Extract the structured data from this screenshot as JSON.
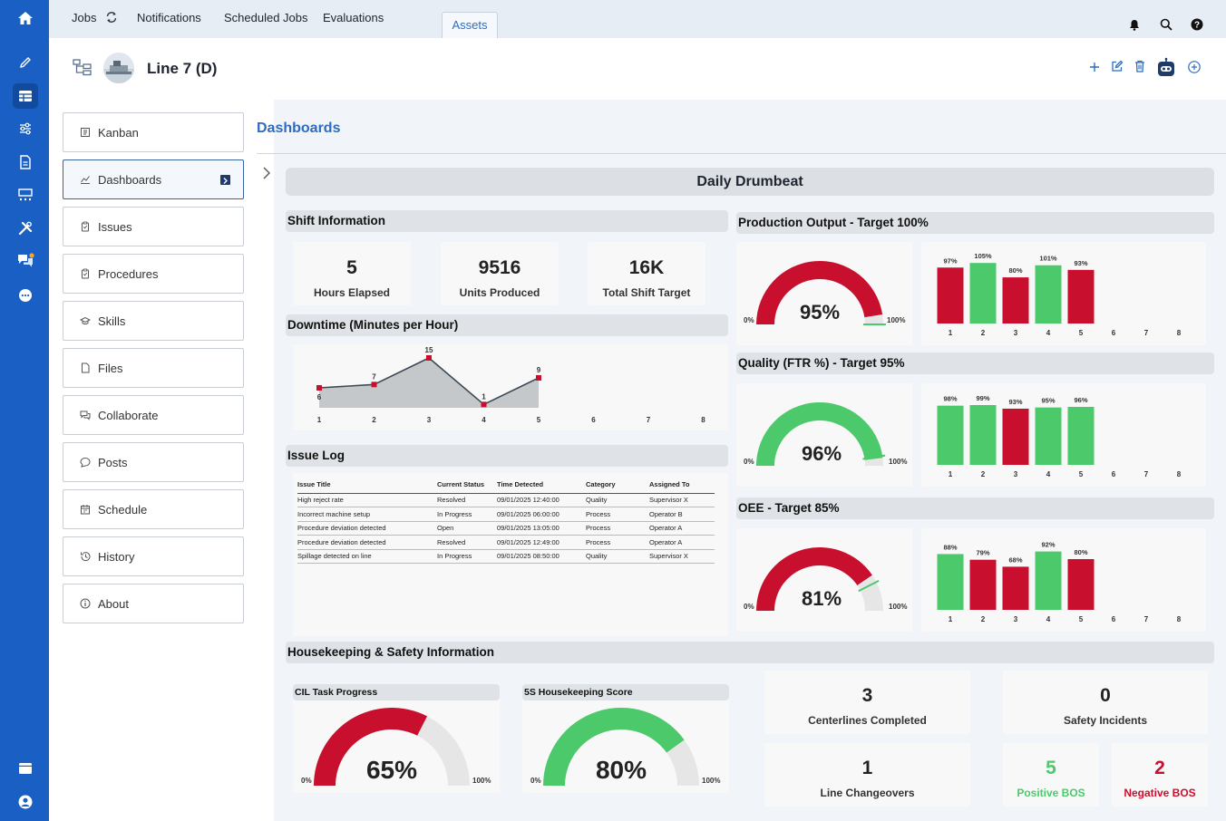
{
  "topbar": {
    "tabs": [
      {
        "label": "Jobs"
      },
      {
        "label": "Notifications"
      },
      {
        "label": "Scheduled Jobs"
      },
      {
        "label": "Evaluations"
      },
      {
        "label": "Assets"
      }
    ],
    "active_tab": "Assets"
  },
  "header": {
    "title": "Line 7 (D)"
  },
  "sidebar": {
    "items": [
      {
        "label": "Kanban",
        "icon": "kanban-icon"
      },
      {
        "label": "Dashboards",
        "icon": "chart-icon"
      },
      {
        "label": "Issues",
        "icon": "clipboard-icon"
      },
      {
        "label": "Procedures",
        "icon": "clipboard-icon"
      },
      {
        "label": "Skills",
        "icon": "graduation-icon"
      },
      {
        "label": "Files",
        "icon": "file-icon"
      },
      {
        "label": "Collaborate",
        "icon": "chat-icon"
      },
      {
        "label": "Posts",
        "icon": "speech-bubble-icon"
      },
      {
        "label": "Schedule",
        "icon": "calendar-icon"
      },
      {
        "label": "History",
        "icon": "history-icon"
      },
      {
        "label": "About",
        "icon": "info-icon"
      }
    ],
    "active": "Dashboards"
  },
  "main": {
    "section_title": "Dashboards"
  },
  "dashboard": {
    "title": "Daily Drumbeat",
    "shift": {
      "title": "Shift Information",
      "kpis": [
        {
          "value": "5",
          "label": "Hours Elapsed"
        },
        {
          "value": "9516",
          "label": "Units Produced"
        },
        {
          "value": "16K",
          "label": "Total Shift Target"
        }
      ]
    },
    "downtime": {
      "title": "Downtime (Minutes per Hour)"
    },
    "issue_log": {
      "title": "Issue Log",
      "columns": [
        "Issue Title",
        "Current Status",
        "Time Detected",
        "Category",
        "Assigned To"
      ],
      "rows": [
        [
          "High reject rate",
          "Resolved",
          "09/01/2025 12:40:00",
          "Quality",
          "Supervisor X"
        ],
        [
          "Incorrect machine setup",
          "In Progress",
          "09/01/2025 06:00:00",
          "Process",
          "Operator B"
        ],
        [
          "Procedure deviation detected",
          "Open",
          "09/01/2025 13:05:00",
          "Process",
          "Operator A"
        ],
        [
          "Procedure deviation detected",
          "Resolved",
          "09/01/2025 12:49:00",
          "Process",
          "Operator A"
        ],
        [
          "Spillage detected on line",
          "In Progress",
          "09/01/2025 08:50:00",
          "Quality",
          "Supervisor X"
        ]
      ]
    },
    "production": {
      "title": "Production Output - Target 100%",
      "gauge_value": 95,
      "gauge_text": "95%"
    },
    "quality": {
      "title": "Quality (FTR %) - Target 95%",
      "gauge_value": 96,
      "gauge_text": "96%"
    },
    "oee": {
      "title": "OEE - Target 85%",
      "gauge_value": 81,
      "gauge_text": "81%"
    },
    "gauge_min": "0%",
    "gauge_max": "100%",
    "housekeeping": {
      "title": "Housekeeping & Safety Information",
      "cil": {
        "title": "CIL Task Progress",
        "value": 65,
        "text": "65%"
      },
      "five_s": {
        "title": "5S Housekeeping Score",
        "value": 80,
        "text": "80%"
      },
      "centerlines": {
        "value": "3",
        "label": "Centerlines Completed"
      },
      "safety": {
        "value": "0",
        "label": "Safety Incidents"
      },
      "changeovers": {
        "value": "1",
        "label": "Line Changeovers"
      },
      "positive_bos": {
        "value": "5",
        "label": "Positive BOS"
      },
      "negative_bos": {
        "value": "2",
        "label": "Negative BOS"
      }
    }
  },
  "colors": {
    "red": "#c8102e",
    "green": "#4cc96b",
    "rail": "#1a5fc4",
    "accent": "#2d6cc0"
  },
  "chart_data": [
    {
      "type": "area",
      "title": "Downtime (Minutes per Hour)",
      "x": [
        1,
        2,
        3,
        4,
        5,
        6,
        7,
        8
      ],
      "values": [
        6,
        7,
        15,
        1,
        9,
        null,
        null,
        null
      ],
      "ylim": [
        0,
        15
      ]
    },
    {
      "type": "bar",
      "title": "Production Output - Target 100%",
      "categories": [
        "1",
        "2",
        "3",
        "4",
        "5",
        "6",
        "7",
        "8"
      ],
      "values": [
        97,
        105,
        80,
        101,
        93,
        null,
        null,
        null
      ],
      "labels": [
        "97%",
        "105%",
        "80%",
        "101%",
        "93%"
      ],
      "colors": [
        "red",
        "green",
        "red",
        "green",
        "red"
      ],
      "ylim": [
        0,
        110
      ]
    },
    {
      "type": "bar",
      "title": "Quality (FTR %) - Target 95%",
      "categories": [
        "1",
        "2",
        "3",
        "4",
        "5",
        "6",
        "7",
        "8"
      ],
      "values": [
        98,
        99,
        93,
        95,
        96,
        null,
        null,
        null
      ],
      "labels": [
        "98%",
        "99%",
        "93%",
        "95%",
        "96%"
      ],
      "colors": [
        "green",
        "green",
        "red",
        "green",
        "green"
      ],
      "ylim": [
        0,
        105
      ]
    },
    {
      "type": "bar",
      "title": "OEE - Target 85%",
      "categories": [
        "1",
        "2",
        "3",
        "4",
        "5",
        "6",
        "7",
        "8"
      ],
      "values": [
        88,
        79,
        68,
        92,
        80,
        null,
        null,
        null
      ],
      "labels": [
        "88%",
        "79%",
        "68%",
        "92%",
        "80%"
      ],
      "colors": [
        "green",
        "red",
        "red",
        "green",
        "red"
      ],
      "ylim": [
        0,
        100
      ]
    }
  ]
}
